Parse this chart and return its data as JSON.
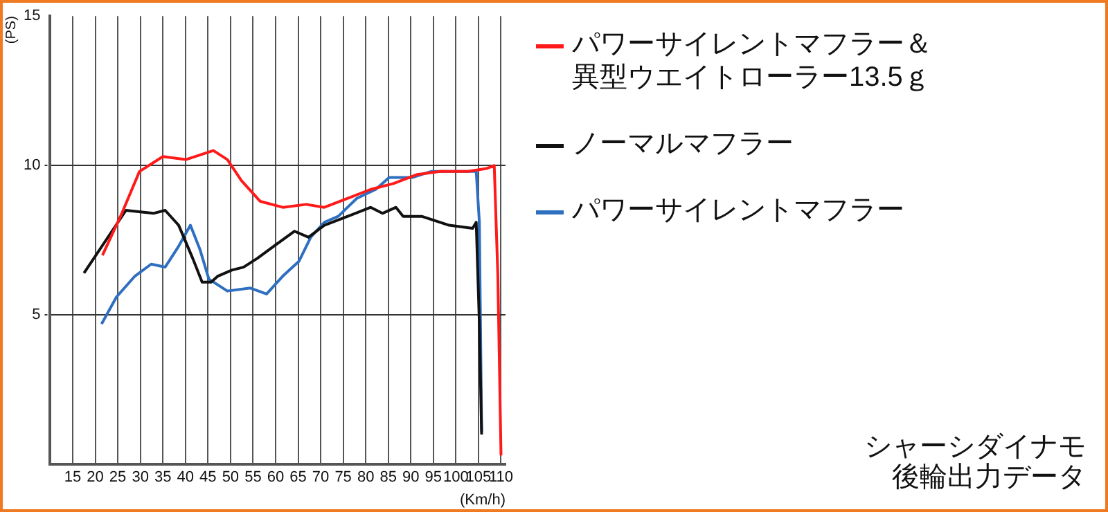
{
  "chart_data": {
    "type": "line",
    "ylabel": "(PS)",
    "xlabel": "(Km/h)",
    "xlim": [
      10,
      111
    ],
    "xticks": [
      15,
      20,
      25,
      30,
      35,
      40,
      45,
      50,
      55,
      60,
      65,
      70,
      75,
      80,
      85,
      90,
      95,
      100,
      105,
      110
    ],
    "ylim": [
      0,
      15
    ],
    "yticks": [
      5,
      10,
      15
    ],
    "grid": true,
    "legend": "right",
    "marker": "none",
    "line_style": "solid",
    "annotations": [
      "シャーシダイナモ",
      "後輪出力データ"
    ],
    "series": [
      {
        "name": "パワーサイレントマフラー＆異型ウエイトローラー13.5ｇ",
        "color": "#ff1a1a",
        "x": [
          21.6,
          25.9,
          29.8,
          35,
          40.1,
          46.2,
          49.3,
          52.4,
          56.6,
          61.6,
          66.8,
          70.8,
          76,
          81.1,
          86.2,
          91.4,
          96.5,
          102.7,
          106.8,
          108.5,
          109.3,
          110
        ],
        "values": [
          7.0,
          8.4,
          9.8,
          10.3,
          10.2,
          10.5,
          10.2,
          9.5,
          8.8,
          8.6,
          8.7,
          8.6,
          8.9,
          9.2,
          9.4,
          9.7,
          9.8,
          9.8,
          9.9,
          10.0,
          6.3,
          0.3
        ]
      },
      {
        "name": "ノーマルマフラー",
        "color": "#111111",
        "x": [
          17.5,
          26.8,
          32.9,
          35.5,
          38.5,
          41.6,
          43.7,
          45.7,
          47.2,
          50.3,
          52.9,
          56,
          59.6,
          64.2,
          67.3,
          70.8,
          76,
          81.1,
          83.7,
          86.7,
          88.3,
          92.4,
          98.5,
          103.7,
          104.5,
          105.2,
          105.7
        ],
        "values": [
          6.4,
          8.5,
          8.4,
          8.5,
          8.0,
          6.9,
          6.1,
          6.1,
          6.3,
          6.5,
          6.6,
          6.9,
          7.3,
          7.8,
          7.6,
          8.0,
          8.3,
          8.6,
          8.4,
          8.6,
          8.3,
          8.3,
          8.0,
          7.9,
          8.1,
          4.7,
          1.0
        ]
      },
      {
        "name": "パワーサイレントマフラー",
        "color": "#2f6fc0",
        "x": [
          21.4,
          24.7,
          28.8,
          32.4,
          35.5,
          38.5,
          41.1,
          43.2,
          45.2,
          49.3,
          54.4,
          58,
          61.6,
          65.2,
          67.8,
          70.8,
          73.9,
          78,
          82.2,
          85.2,
          90.3,
          94.5,
          103.7,
          104.5,
          105.2,
          105.7
        ],
        "values": [
          4.7,
          5.6,
          6.3,
          6.7,
          6.6,
          7.3,
          8.0,
          7.2,
          6.2,
          5.8,
          5.9,
          5.7,
          6.3,
          6.8,
          7.6,
          8.1,
          8.3,
          8.9,
          9.2,
          9.6,
          9.6,
          9.8,
          9.8,
          9.8,
          8.1,
          1.1
        ]
      }
    ]
  }
}
